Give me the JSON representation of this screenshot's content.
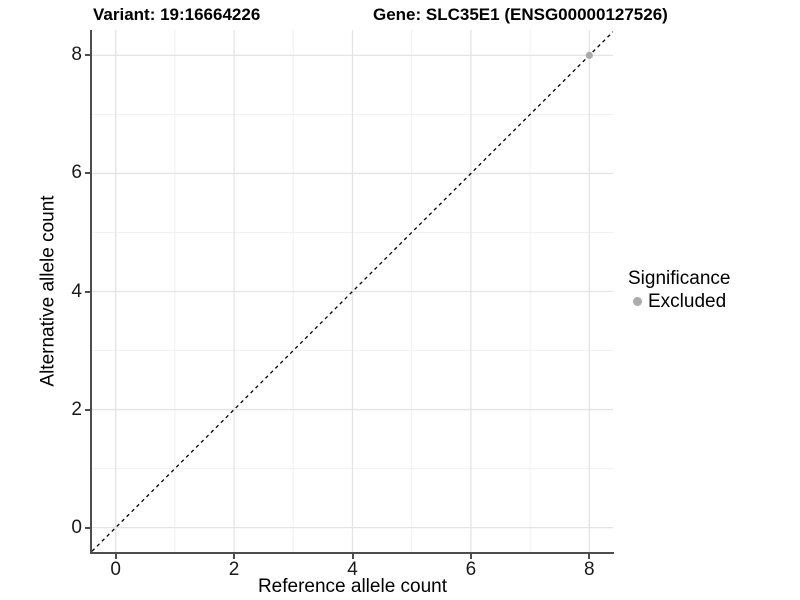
{
  "titles": {
    "variant": "Variant: 19:16664226",
    "gene": "Gene: SLC35E1 (ENSG00000127526)"
  },
  "axes": {
    "x_title": "Reference allele count",
    "y_title": "Alternative allele count"
  },
  "legend": {
    "title": "Significance",
    "items": [
      {
        "label": "Excluded",
        "color": "#ababab"
      }
    ]
  },
  "chart_data": {
    "type": "scatter",
    "title": "Variant: 19:16664226   Gene: SLC35E1 (ENSG00000127526)",
    "xlabel": "Reference allele count",
    "ylabel": "Alternative allele count",
    "xlim": [
      -0.4,
      8.4
    ],
    "ylim": [
      -0.43,
      8.43
    ],
    "x_ticks": [
      0,
      2,
      4,
      6,
      8
    ],
    "y_ticks": [
      0,
      2,
      4,
      6,
      8
    ],
    "x_minor_ticks": [
      1,
      3,
      5,
      7
    ],
    "y_minor_ticks": [
      1,
      3,
      5,
      7
    ],
    "grid": true,
    "legend_position": "right",
    "series": [
      {
        "name": "Excluded",
        "marker": "circle",
        "color": "#ababab",
        "points": [
          [
            8,
            8
          ]
        ]
      }
    ],
    "reference_line": {
      "kind": "identity",
      "style": "dashed",
      "color": "#000000"
    }
  },
  "colors": {
    "background": "#ffffff",
    "axis_line": "#4d4d4d",
    "grid_major": "#e4e4e4",
    "grid_minor": "#f1f1f1",
    "text": "#000000",
    "excluded": "#ababab"
  }
}
